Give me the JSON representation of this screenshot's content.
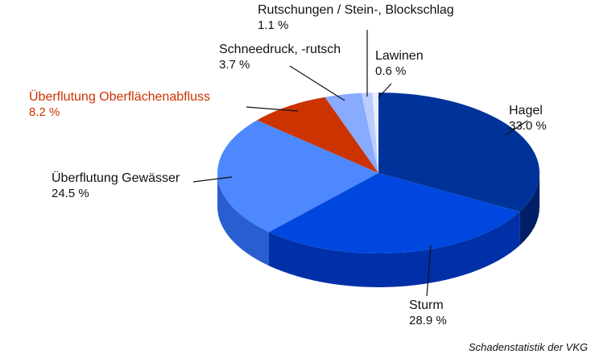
{
  "chart_data": {
    "type": "pie",
    "style": "3d",
    "unit": "%",
    "slices": [
      {
        "label": "Hagel",
        "value": 33.0,
        "display": "33.0 %",
        "color": "#003399",
        "side": "#001f66"
      },
      {
        "label": "Sturm",
        "value": 28.9,
        "display": "28.9 %",
        "color": "#0047e0",
        "side": "#0030a8"
      },
      {
        "label": "Überflutung Gewässer",
        "value": 24.5,
        "display": "24.5 %",
        "color": "#4d88ff",
        "side": "#2a5ed0"
      },
      {
        "label": "Überflutung Oberflächenabfluss",
        "value": 8.2,
        "display": "8.2 %",
        "color": "#cc3300",
        "side": "#992200",
        "label_color": "#cc3300"
      },
      {
        "label": "Schneedruck, -rutsch",
        "value": 3.7,
        "display": "3.7 %",
        "color": "#88aaff",
        "side": "#6688dd"
      },
      {
        "label": "Rutschungen / Stein-, Blockschlag",
        "value": 1.1,
        "display": "1.1 %",
        "color": "#bbccff",
        "side": "#99aaee"
      },
      {
        "label": "Lawinen",
        "value": 0.6,
        "display": "0.6 %",
        "color": "#e8f0ff",
        "side": "#c8d4ff"
      }
    ],
    "start": "top",
    "direction": "clockwise"
  },
  "source": "Schadenstatistik der VKG"
}
